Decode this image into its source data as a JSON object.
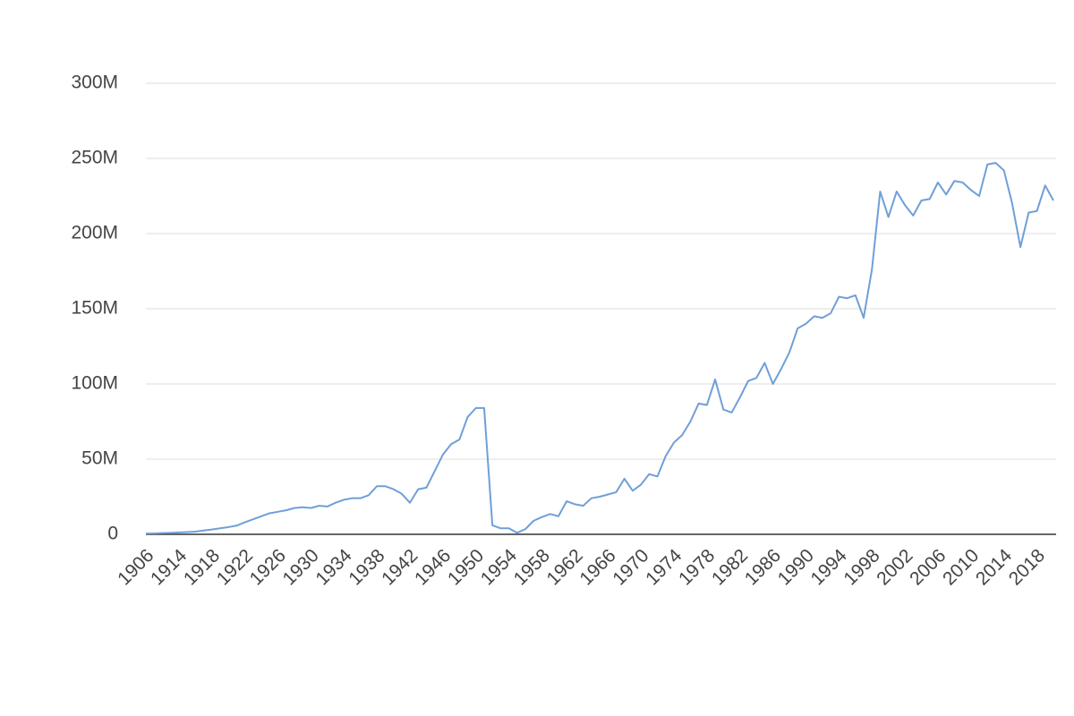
{
  "chart_data": {
    "type": "line",
    "categories": [
      "1906",
      null,
      null,
      null,
      "1914",
      null,
      null,
      null,
      "1918",
      null,
      null,
      null,
      "1922",
      null,
      null,
      null,
      "1926",
      null,
      null,
      null,
      "1930",
      null,
      null,
      null,
      "1934",
      null,
      null,
      null,
      "1938",
      null,
      null,
      null,
      "1942",
      null,
      null,
      null,
      "1946",
      null,
      null,
      null,
      "1950",
      null,
      null,
      null,
      "1954",
      null,
      null,
      null,
      "1958",
      null,
      null,
      null,
      "1962",
      null,
      null,
      null,
      "1966",
      null,
      null,
      null,
      "1970",
      null,
      null,
      null,
      "1974",
      null,
      null,
      null,
      "1978",
      null,
      null,
      null,
      "1982",
      null,
      null,
      null,
      "1986",
      null,
      null,
      null,
      "1990",
      null,
      null,
      null,
      "1994",
      null,
      null,
      null,
      "1998",
      null,
      null,
      null,
      "2002",
      null,
      null,
      null,
      "2006",
      null,
      null,
      null,
      "2010",
      null,
      null,
      null,
      "2014",
      null,
      null,
      null,
      "2018",
      null,
      null
    ],
    "values": [
      500000,
      600000,
      800000,
      1000000,
      1300000,
      1500000,
      1800000,
      2500000,
      3200000,
      4000000,
      4800000,
      5800000,
      8000000,
      10000000,
      12000000,
      14000000,
      15000000,
      16000000,
      17500000,
      18000000,
      17500000,
      19000000,
      18500000,
      21000000,
      23000000,
      24000000,
      24000000,
      26000000,
      32000000,
      32000000,
      30000000,
      27000000,
      21000000,
      30000000,
      31000000,
      42000000,
      53000000,
      60000000,
      63000000,
      78000000,
      84000000,
      84000000,
      6000000,
      4000000,
      4000000,
      1000000,
      3500000,
      9000000,
      11500000,
      13500000,
      12000000,
      22000000,
      20000000,
      19000000,
      24000000,
      25000000,
      26500000,
      28000000,
      37000000,
      29000000,
      33000000,
      40000000,
      38500000,
      52000000,
      61000000,
      66000000,
      75000000,
      87000000,
      86000000,
      103000000,
      83000000,
      81000000,
      91000000,
      102000000,
      104000000,
      114000000,
      100000000,
      110000000,
      121000000,
      137000000,
      140000000,
      145000000,
      144000000,
      147000000,
      158000000,
      157000000,
      159000000,
      144000000,
      176000000,
      228000000,
      211000000,
      228000000,
      219000000,
      212000000,
      222000000,
      223000000,
      234000000,
      226000000,
      235000000,
      234000000,
      229000000,
      225000000,
      246000000,
      247000000,
      242000000,
      220000000,
      191000000,
      214000000,
      215000000,
      232000000,
      222000000
    ],
    "color": "#6f9fd8",
    "ylim": [
      0,
      300000000
    ],
    "yticks": [
      {
        "value": 0,
        "label": "0"
      },
      {
        "value": 50000000,
        "label": "50M"
      },
      {
        "value": 100000000,
        "label": "100M"
      },
      {
        "value": 150000000,
        "label": "150M"
      },
      {
        "value": 200000000,
        "label": "200M"
      },
      {
        "value": 250000000,
        "label": "250M"
      },
      {
        "value": 300000000,
        "label": "300M"
      }
    ],
    "grid": true
  }
}
